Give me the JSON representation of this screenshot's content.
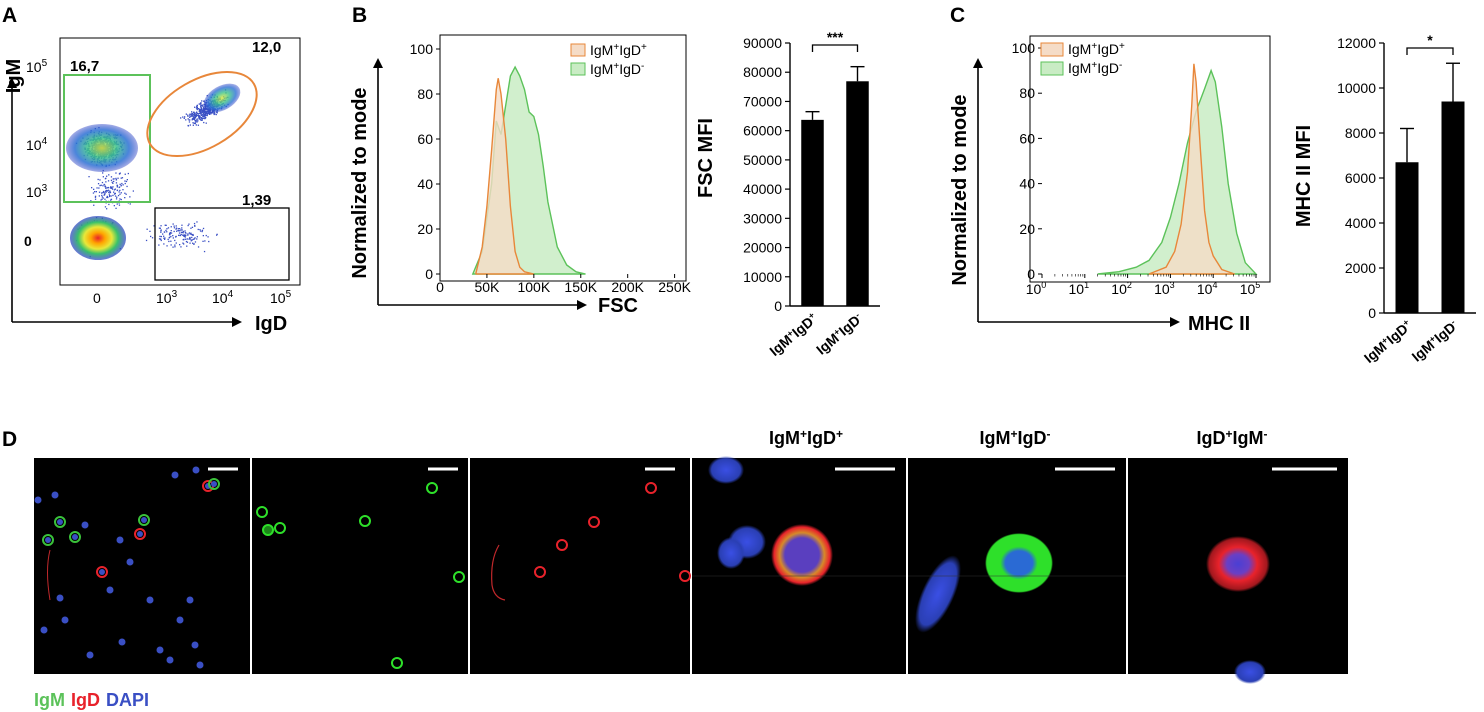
{
  "panels": {
    "A": "A",
    "B": "B",
    "C": "C",
    "D": "D"
  },
  "colors": {
    "green": "#5cc25a",
    "orange": "#e8873a",
    "red": "#e8222b",
    "blue": "#3a4fc4",
    "bar": "#000000"
  },
  "flow": {
    "xlabel": "IgD",
    "ylabel": "IgM",
    "gate_green": "16,7",
    "gate_orange": "12,0",
    "gate_black": "1,39",
    "x_ticks": [
      {
        "m": "0",
        "e": ""
      },
      {
        "m": "10",
        "e": "3"
      },
      {
        "m": "10",
        "e": "4"
      },
      {
        "m": "10",
        "e": "5"
      }
    ],
    "y_ticks": [
      {
        "m": "0",
        "e": ""
      },
      {
        "m": "10",
        "e": "3"
      },
      {
        "m": "10",
        "e": "4"
      },
      {
        "m": "10",
        "e": "5"
      }
    ]
  },
  "chart_data": [
    {
      "type": "area",
      "panel": "B-histogram",
      "xlabel": "FSC",
      "ylabel": "Normalized to mode",
      "xlim": [
        0,
        262144
      ],
      "ylim": [
        0,
        100
      ],
      "x_tick_labels": [
        "0",
        "50K",
        "100K",
        "150K",
        "200K",
        "250K"
      ],
      "y_tick_labels": [
        "0",
        "20",
        "40",
        "60",
        "80",
        "100"
      ],
      "legend_position": "top-right",
      "series": [
        {
          "name": "IgM+IgD+",
          "color": "#e8873a",
          "x": [
            38000,
            45000,
            50000,
            55000,
            60000,
            62000,
            65000,
            70000,
            75000,
            80000,
            85000,
            90000,
            100000
          ],
          "y": [
            0,
            12,
            30,
            55,
            82,
            87,
            80,
            60,
            30,
            10,
            3,
            1,
            0
          ]
        },
        {
          "name": "IgM+IgD-",
          "color": "#5cc25a",
          "x": [
            35000,
            45000,
            55000,
            60000,
            65000,
            70000,
            75000,
            80000,
            85000,
            90000,
            95000,
            100000,
            105000,
            110000,
            115000,
            125000,
            135000,
            145000,
            155000
          ],
          "y": [
            0,
            10,
            40,
            68,
            62,
            75,
            88,
            92,
            88,
            82,
            72,
            70,
            62,
            48,
            32,
            12,
            4,
            1,
            0
          ]
        }
      ]
    },
    {
      "type": "bar",
      "panel": "B-bar",
      "ylabel": "FSC MFI",
      "ylim": [
        0,
        90000
      ],
      "y_tick_labels": [
        "0",
        "10000",
        "20000",
        "30000",
        "40000",
        "50000",
        "60000",
        "70000",
        "80000",
        "90000"
      ],
      "categories": [
        {
          "a": "IgM",
          "as": "+",
          "b": "IgD",
          "bs": "+"
        },
        {
          "a": "IgM",
          "as": "+",
          "b": "IgD",
          "bs": "-"
        }
      ],
      "values": [
        63700,
        76900
      ],
      "errors": [
        2800,
        5000
      ],
      "significance": "***"
    },
    {
      "type": "area",
      "panel": "C-histogram",
      "xlabel": "MHC II",
      "ylabel": "Normalized to mode",
      "xscale": "log",
      "ylim": [
        0,
        100
      ],
      "x_tick_labels": [
        {
          "m": "10",
          "e": "0"
        },
        {
          "m": "10",
          "e": "1"
        },
        {
          "m": "10",
          "e": "2"
        },
        {
          "m": "10",
          "e": "3"
        },
        {
          "m": "10",
          "e": "4"
        },
        {
          "m": "10",
          "e": "5"
        }
      ],
      "y_tick_labels": [
        "0",
        "20",
        "40",
        "60",
        "80",
        "100"
      ],
      "legend_position": "top-left",
      "series": [
        {
          "name": "IgM+IgD+",
          "color": "#e8873a",
          "x": [
            2.5,
            2.9,
            3.1,
            3.25,
            3.4,
            3.5,
            3.55,
            3.6,
            3.7,
            3.8,
            3.9,
            4.0,
            4.2,
            4.5
          ],
          "y": [
            0,
            3,
            10,
            22,
            45,
            75,
            93,
            85,
            55,
            28,
            14,
            8,
            2,
            0
          ]
        },
        {
          "name": "IgM+IgD-",
          "color": "#5cc25a",
          "x": [
            1.3,
            1.8,
            2.2,
            2.5,
            2.8,
            3.0,
            3.2,
            3.4,
            3.6,
            3.8,
            3.95,
            4.05,
            4.2,
            4.35,
            4.55,
            4.75,
            5.0
          ],
          "y": [
            0,
            1,
            3,
            6,
            14,
            25,
            40,
            58,
            72,
            82,
            90,
            85,
            65,
            40,
            18,
            5,
            0
          ]
        }
      ]
    },
    {
      "type": "bar",
      "panel": "C-bar",
      "ylabel": "MHC II MFI",
      "ylim": [
        0,
        12000
      ],
      "y_tick_labels": [
        "0",
        "2000",
        "4000",
        "6000",
        "8000",
        "10000",
        "12000"
      ],
      "categories": [
        {
          "a": "IgM",
          "as": "+",
          "b": "IgD",
          "bs": "+"
        },
        {
          "a": "IgM",
          "as": "+",
          "b": "IgD",
          "bs": "-"
        }
      ],
      "values": [
        6700,
        9400
      ],
      "errors": [
        1500,
        1700
      ],
      "significance": "*"
    }
  ],
  "micro": {
    "titles": [
      {
        "a": "IgM",
        "as": "+",
        "b": "IgD",
        "bs": "+"
      },
      {
        "a": "IgM",
        "as": "+",
        "b": "IgD",
        "bs": "-"
      },
      {
        "a": "IgD",
        "as": "+",
        "b": "IgM",
        "bs": "-"
      }
    ],
    "channels": {
      "igm": "IgM",
      "igd": "IgD",
      "dapi": "DAPI"
    }
  }
}
